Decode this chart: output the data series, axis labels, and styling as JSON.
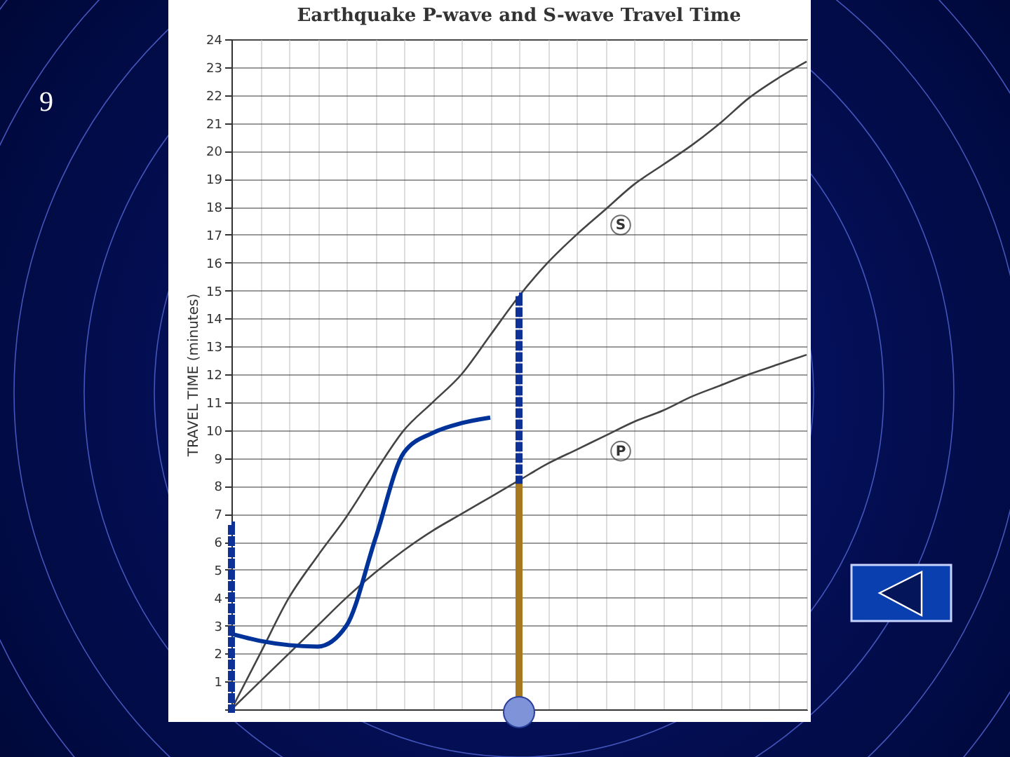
{
  "chart_data": {
    "type": "line",
    "title": "Earthquake P-wave and S-wave Travel Time",
    "ylabel": "TRAVEL TIME (minutes)",
    "annotations": [
      "9"
    ],
    "categories": [
      null,
      null,
      null,
      null,
      null,
      null,
      null,
      null,
      null,
      null,
      null,
      null,
      null,
      null,
      null,
      null,
      null,
      null,
      null,
      null,
      null
    ],
    "series": [
      {
        "name": "S",
        "color": "#444444",
        "values": [
          0,
          2.0,
          4.0,
          5.5,
          6.9,
          8.5,
          10.0,
          11.0,
          12.0,
          13.4,
          14.8,
          16.0,
          17.0,
          17.9,
          18.8,
          19.5,
          20.2,
          21.0,
          21.9,
          22.6,
          23.2
        ]
      },
      {
        "name": "P",
        "color": "#444444",
        "values": [
          0,
          1.0,
          2.0,
          3.0,
          4.0,
          4.9,
          5.7,
          6.4,
          7.0,
          7.6,
          8.2,
          8.8,
          9.3,
          9.8,
          10.3,
          10.7,
          11.2,
          11.6,
          12.0,
          12.35,
          12.7
        ]
      },
      {
        "color": "#003399",
        "values": [
          2.7,
          2.45,
          2.3,
          2.25,
          3.0,
          6.1,
          9.2,
          9.9,
          10.25,
          10.45,
          null,
          null,
          null,
          null,
          null,
          null,
          null,
          null,
          null,
          null,
          null
        ]
      },
      {
        "type": "bar",
        "color": "#a8781e",
        "line_style": "solid",
        "values": [
          null,
          null,
          null,
          null,
          null,
          null,
          null,
          null,
          null,
          null,
          8.2,
          null,
          null,
          null,
          null,
          null,
          null,
          null,
          null,
          null,
          null
        ],
        "base": [
          null,
          null,
          null,
          null,
          null,
          null,
          null,
          null,
          null,
          null,
          0,
          null,
          null,
          null,
          null,
          null,
          null,
          null,
          null,
          null,
          null
        ]
      },
      {
        "type": "bar",
        "color": "#0d3196",
        "line_style": "dotted",
        "values": [
          6.6,
          null,
          null,
          null,
          null,
          null,
          null,
          null,
          null,
          null,
          6.6,
          null,
          null,
          null,
          null,
          null,
          null,
          null,
          null,
          null,
          null
        ],
        "base": [
          0,
          null,
          null,
          null,
          null,
          null,
          null,
          null,
          null,
          null,
          8.2,
          null,
          null,
          null,
          null,
          null,
          null,
          null,
          null,
          null,
          null
        ]
      }
    ],
    "ylim": [
      0,
      24
    ],
    "yticks": [
      {
        "value": 0,
        "label": null
      },
      1,
      2,
      3,
      4,
      5,
      6,
      7,
      8,
      9,
      10,
      11,
      12,
      13,
      14,
      15,
      16,
      17,
      18,
      19,
      20,
      21,
      22,
      23,
      24
    ],
    "tick_labels": "y",
    "grid": true
  }
}
